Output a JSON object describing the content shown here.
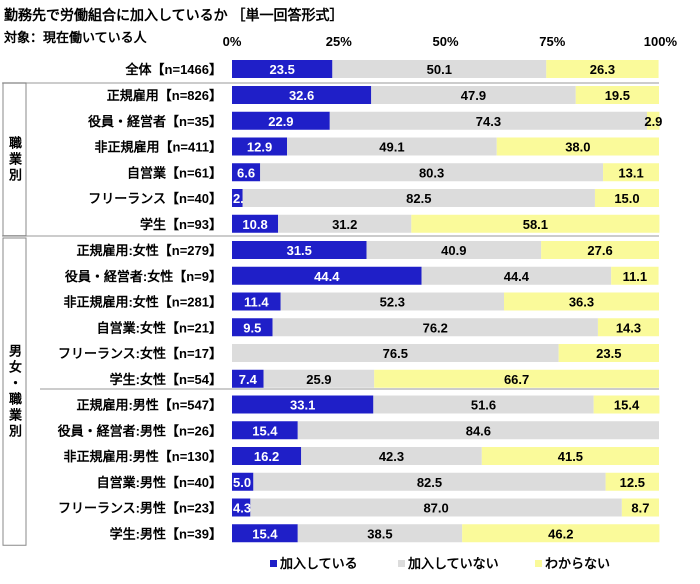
{
  "title": "勤務先で労働組合に加入しているか ［単一回答形式］",
  "subtitle": "対象：現在働いている人",
  "colors": {
    "joined": "#1f1fc8",
    "not_joined": "#dcdcdc",
    "unknown": "#fafa9a"
  },
  "groups": [
    {
      "label": "職業別",
      "rows": [
        1,
        6
      ]
    },
    {
      "label": "男女・職業別",
      "rows": [
        7,
        18
      ]
    }
  ],
  "chart_data": {
    "type": "bar",
    "orientation": "horizontal",
    "stacked": true,
    "xlim": [
      0,
      100
    ],
    "x_ticks": [
      "0%",
      "25%",
      "50%",
      "75%",
      "100%"
    ],
    "legend_placement": "bottom",
    "categories": [
      "全体【n=1466】",
      "正規雇用【n=826】",
      "役員・経営者【n=35】",
      "非正規雇用【n=411】",
      "自営業【n=61】",
      "フリーランス【n=40】",
      "学生【n=93】",
      "正規雇用:女性【n=279】",
      "役員・経営者:女性【n=9】",
      "非正規雇用:女性【n=281】",
      "自営業:女性【n=21】",
      "フリーランス:女性【n=17】",
      "学生:女性【n=54】",
      "正規雇用:男性【n=547】",
      "役員・経営者:男性【n=26】",
      "非正規雇用:男性【n=130】",
      "自営業:男性【n=40】",
      "フリーランス:男性【n=23】",
      "学生:男性【n=39】"
    ],
    "series": [
      {
        "name": "加入している",
        "values": [
          23.5,
          32.6,
          22.9,
          12.9,
          6.6,
          2.5,
          10.8,
          31.5,
          44.4,
          11.4,
          9.5,
          0,
          7.4,
          33.1,
          15.4,
          16.2,
          5.0,
          4.3,
          15.4
        ]
      },
      {
        "name": "加入していない",
        "values": [
          50.1,
          47.9,
          74.3,
          49.1,
          80.3,
          82.5,
          31.2,
          40.9,
          44.4,
          52.3,
          76.2,
          76.5,
          25.9,
          51.6,
          84.6,
          42.3,
          82.5,
          87.0,
          38.5
        ]
      },
      {
        "name": "わからない",
        "values": [
          26.3,
          19.5,
          2.9,
          38.0,
          13.1,
          15.0,
          58.1,
          27.6,
          11.1,
          36.3,
          14.3,
          23.5,
          66.7,
          15.4,
          0,
          41.5,
          12.5,
          8.7,
          46.2
        ]
      }
    ]
  }
}
